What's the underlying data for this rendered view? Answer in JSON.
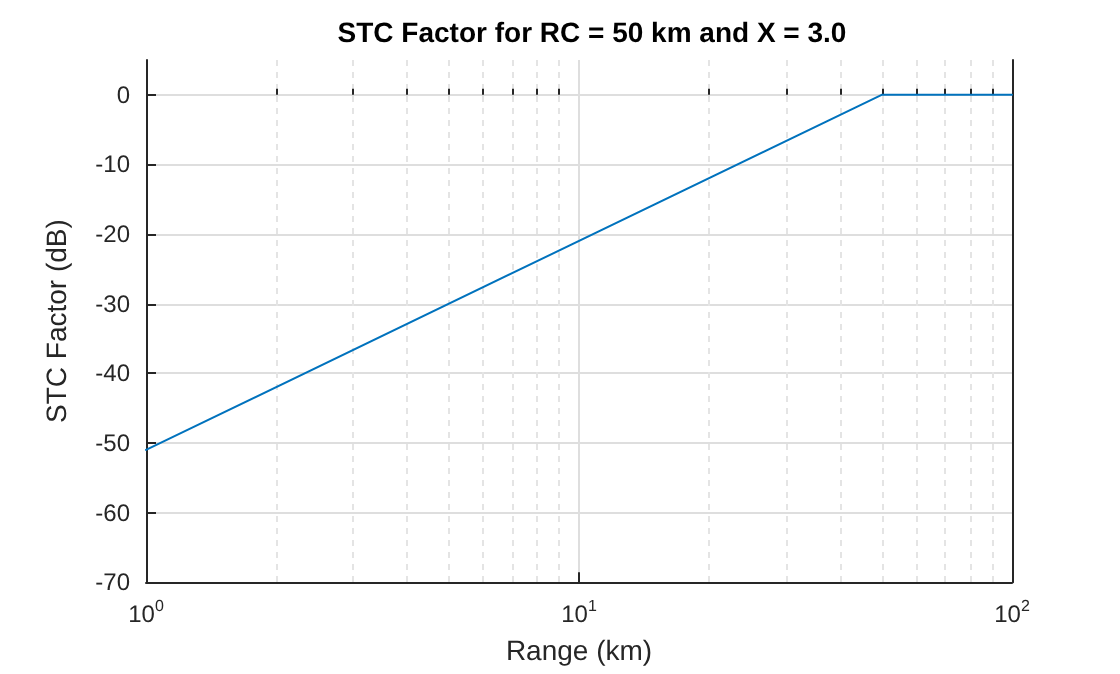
{
  "chart_data": {
    "type": "line",
    "title": "STC Factor for RC = 50 km and X = 3.0",
    "xlabel": "Range (km)",
    "ylabel": "STC Factor (dB)",
    "x": [
      1,
      50,
      100
    ],
    "series": [
      {
        "color": "#0072bd",
        "values": [
          -51,
          0,
          0
        ]
      }
    ],
    "log": "x",
    "xlim": [
      1,
      100
    ],
    "xticks": [
      {
        "value": 1,
        "label": "10$^{0}$"
      },
      {
        "value": 10,
        "label": "10$^{1}$"
      },
      {
        "value": 100,
        "label": "10$^{2}$"
      }
    ],
    "ylim": [
      -70,
      5
    ],
    "yticks": [
      -70,
      -60,
      -50,
      -40,
      -30,
      -20,
      -10,
      0
    ],
    "grid": true,
    "marker": "none",
    "line_style": "solid"
  }
}
